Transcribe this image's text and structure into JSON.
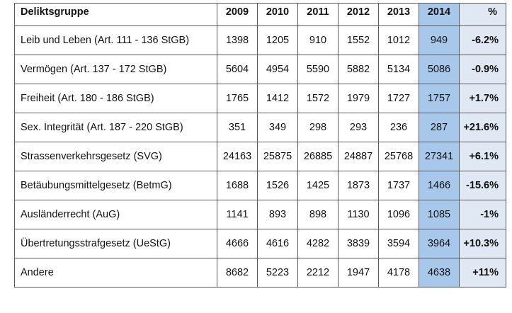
{
  "table": {
    "headers": [
      "Deliktsgruppe",
      "2009",
      "2010",
      "2011",
      "2012",
      "2013",
      "2014",
      "%"
    ],
    "rows": [
      {
        "label": "Leib und Leben (Art. 111 - 136 StGB)",
        "values": [
          "1398",
          "1205",
          "910",
          "1552",
          "1012",
          "949"
        ],
        "pct": "-6.2%"
      },
      {
        "label": "Vermögen (Art. 137 - 172 StGB)",
        "values": [
          "5604",
          "4954",
          "5590",
          "5882",
          "5134",
          "5086"
        ],
        "pct": "-0.9%"
      },
      {
        "label": "Freiheit (Art. 180 - 186 StGB)",
        "values": [
          "1765",
          "1412",
          "1572",
          "1979",
          "1727",
          "1757"
        ],
        "pct": "+1.7%"
      },
      {
        "label": "Sex. Integrität (Art. 187 - 220 StGB)",
        "values": [
          "351",
          "349",
          "298",
          "293",
          "236",
          "287"
        ],
        "pct": "+21.6%"
      },
      {
        "label": "Strassenverkehrsgesetz (SVG)",
        "values": [
          "24163",
          "25875",
          "26885",
          "24887",
          "25768",
          "27341"
        ],
        "pct": "+6.1%"
      },
      {
        "label": "Betäubungsmittelgesetz (BetmG)",
        "values": [
          "1688",
          "1526",
          "1425",
          "1873",
          "1737",
          "1466"
        ],
        "pct": "-15.6%"
      },
      {
        "label": "Ausländerrecht (AuG)",
        "values": [
          "1141",
          "893",
          "898",
          "1130",
          "1096",
          "1085"
        ],
        "pct": "-1%"
      },
      {
        "label": "Übertretungsstrafgesetz (UeStG)",
        "values": [
          "4666",
          "4616",
          "4282",
          "3839",
          "3594",
          "3964"
        ],
        "pct": "+10.3%"
      },
      {
        "label": "Andere",
        "values": [
          "8682",
          "5223",
          "2212",
          "1947",
          "4178",
          "4638"
        ],
        "pct": "+11%"
      }
    ]
  },
  "colors": {
    "highlight_2014": "#a7c8ea",
    "percent_column": "#dfe8f3",
    "border": "#5a5a5a"
  }
}
